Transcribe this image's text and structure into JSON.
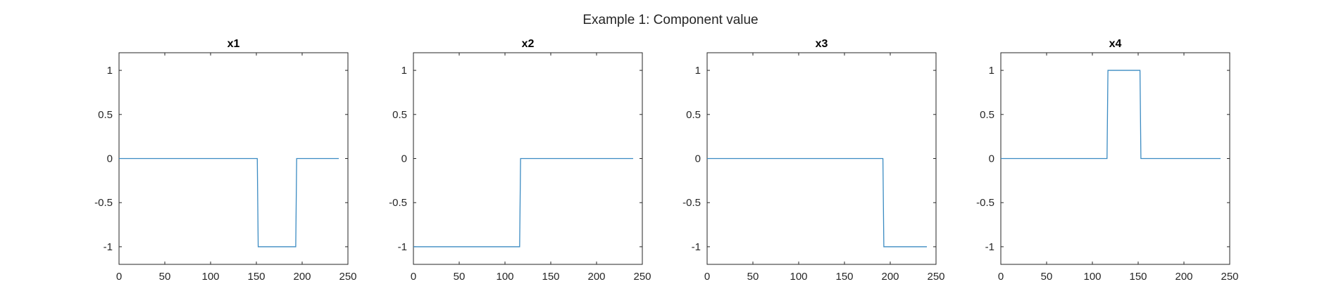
{
  "figure_title": "Example 1: Component value",
  "line_color": "#3b8bc2",
  "chart_data": [
    {
      "type": "line",
      "title": "x1",
      "xlabel": "",
      "ylabel": "",
      "xlim": [
        0,
        250
      ],
      "ylim": [
        -1.2,
        1.2
      ],
      "xticks": [
        0,
        50,
        100,
        150,
        200,
        250
      ],
      "xtick_labels": [
        "0",
        "50",
        "100",
        "150",
        "200",
        "250"
      ],
      "yticks": [
        1,
        0.5,
        0,
        -0.5,
        -1
      ],
      "ytick_labels": [
        "1",
        "0.5",
        "0",
        "-0.5",
        "-1"
      ],
      "grid": false,
      "series": [
        {
          "x": [
            0,
            151,
            152,
            193,
            194,
            240
          ],
          "y": [
            0,
            0,
            -1,
            -1,
            0,
            0
          ]
        }
      ]
    },
    {
      "type": "line",
      "title": "x2",
      "xlabel": "",
      "ylabel": "",
      "xlim": [
        0,
        250
      ],
      "ylim": [
        -1.2,
        1.2
      ],
      "xticks": [
        0,
        50,
        100,
        150,
        200,
        250
      ],
      "xtick_labels": [
        "0",
        "50",
        "100",
        "150",
        "200",
        "250"
      ],
      "yticks": [
        1,
        0.5,
        0,
        -0.5,
        -1
      ],
      "ytick_labels": [
        "1",
        "0.5",
        "0",
        "-0.5",
        "-1"
      ],
      "grid": false,
      "series": [
        {
          "x": [
            0,
            116,
            117,
            240
          ],
          "y": [
            -1,
            -1,
            0,
            0
          ]
        }
      ]
    },
    {
      "type": "line",
      "title": "x3",
      "xlabel": "",
      "ylabel": "",
      "xlim": [
        0,
        250
      ],
      "ylim": [
        -1.2,
        1.2
      ],
      "xticks": [
        0,
        50,
        100,
        150,
        200,
        250
      ],
      "xtick_labels": [
        "0",
        "50",
        "100",
        "150",
        "200",
        "250"
      ],
      "yticks": [
        1,
        0.5,
        0,
        -0.5,
        -1
      ],
      "ytick_labels": [
        "1",
        "0.5",
        "0",
        "-0.5",
        "-1"
      ],
      "grid": false,
      "series": [
        {
          "x": [
            0,
            192,
            193,
            240
          ],
          "y": [
            0,
            0,
            -1,
            -1
          ]
        }
      ]
    },
    {
      "type": "line",
      "title": "x4",
      "xlabel": "",
      "ylabel": "",
      "xlim": [
        0,
        250
      ],
      "ylim": [
        -1.2,
        1.2
      ],
      "xticks": [
        0,
        50,
        100,
        150,
        200,
        250
      ],
      "xtick_labels": [
        "0",
        "50",
        "100",
        "150",
        "200",
        "250"
      ],
      "yticks": [
        1,
        0.5,
        0,
        -0.5,
        -1
      ],
      "ytick_labels": [
        "1",
        "0.5",
        "0",
        "-0.5",
        "-1"
      ],
      "grid": false,
      "series": [
        {
          "x": [
            0,
            116,
            117,
            152,
            153,
            240
          ],
          "y": [
            0,
            0,
            1,
            1,
            0,
            0
          ]
        }
      ]
    }
  ]
}
